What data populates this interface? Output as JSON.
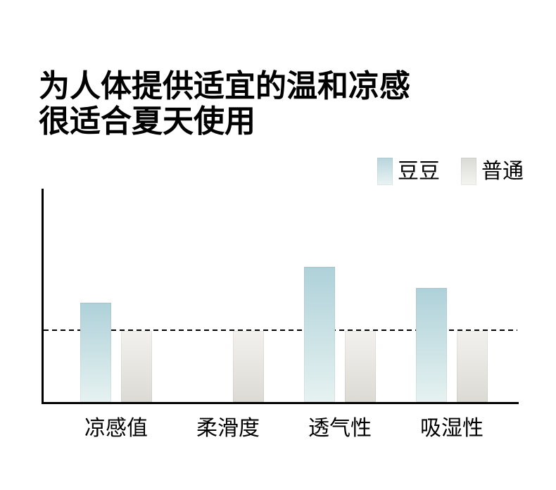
{
  "page": {
    "background": "#ffffff",
    "title_line1": "为人体提供适宜的温和凉感",
    "title_line2": "很适合夏天使用"
  },
  "legend": {
    "items": [
      {
        "label": "豆豆",
        "swatch_top": "#b7d5dc",
        "swatch_bottom": "#ebf4f4"
      },
      {
        "label": "普通",
        "swatch_top": "#dadad5",
        "swatch_bottom": "#f4f4f1"
      }
    ]
  },
  "chart_data": {
    "type": "bar",
    "title": "为人体提供适宜的温和凉感 很适合夏天使用",
    "categories": [
      "凉感值",
      "柔滑度",
      "透气性",
      "吸湿性"
    ],
    "series": [
      {
        "name": "豆豆",
        "values": [
          1.4,
          null,
          1.9,
          1.6
        ],
        "color_top": "#aed1d9",
        "color_bottom": "#e6f2f1"
      },
      {
        "name": "普通",
        "values": [
          1.0,
          1.0,
          1.0,
          1.0
        ],
        "color_top": "#f2f1ed",
        "color_bottom": "#dcdad4"
      }
    ],
    "baseline_value": 1.0,
    "baseline_style": "dashed",
    "ylim": [
      0,
      3.0
    ],
    "xlabel": "",
    "ylabel": "",
    "grid": false,
    "legend_position": "top-right",
    "axis_color": "#000000",
    "baseline_color": "#000000"
  }
}
